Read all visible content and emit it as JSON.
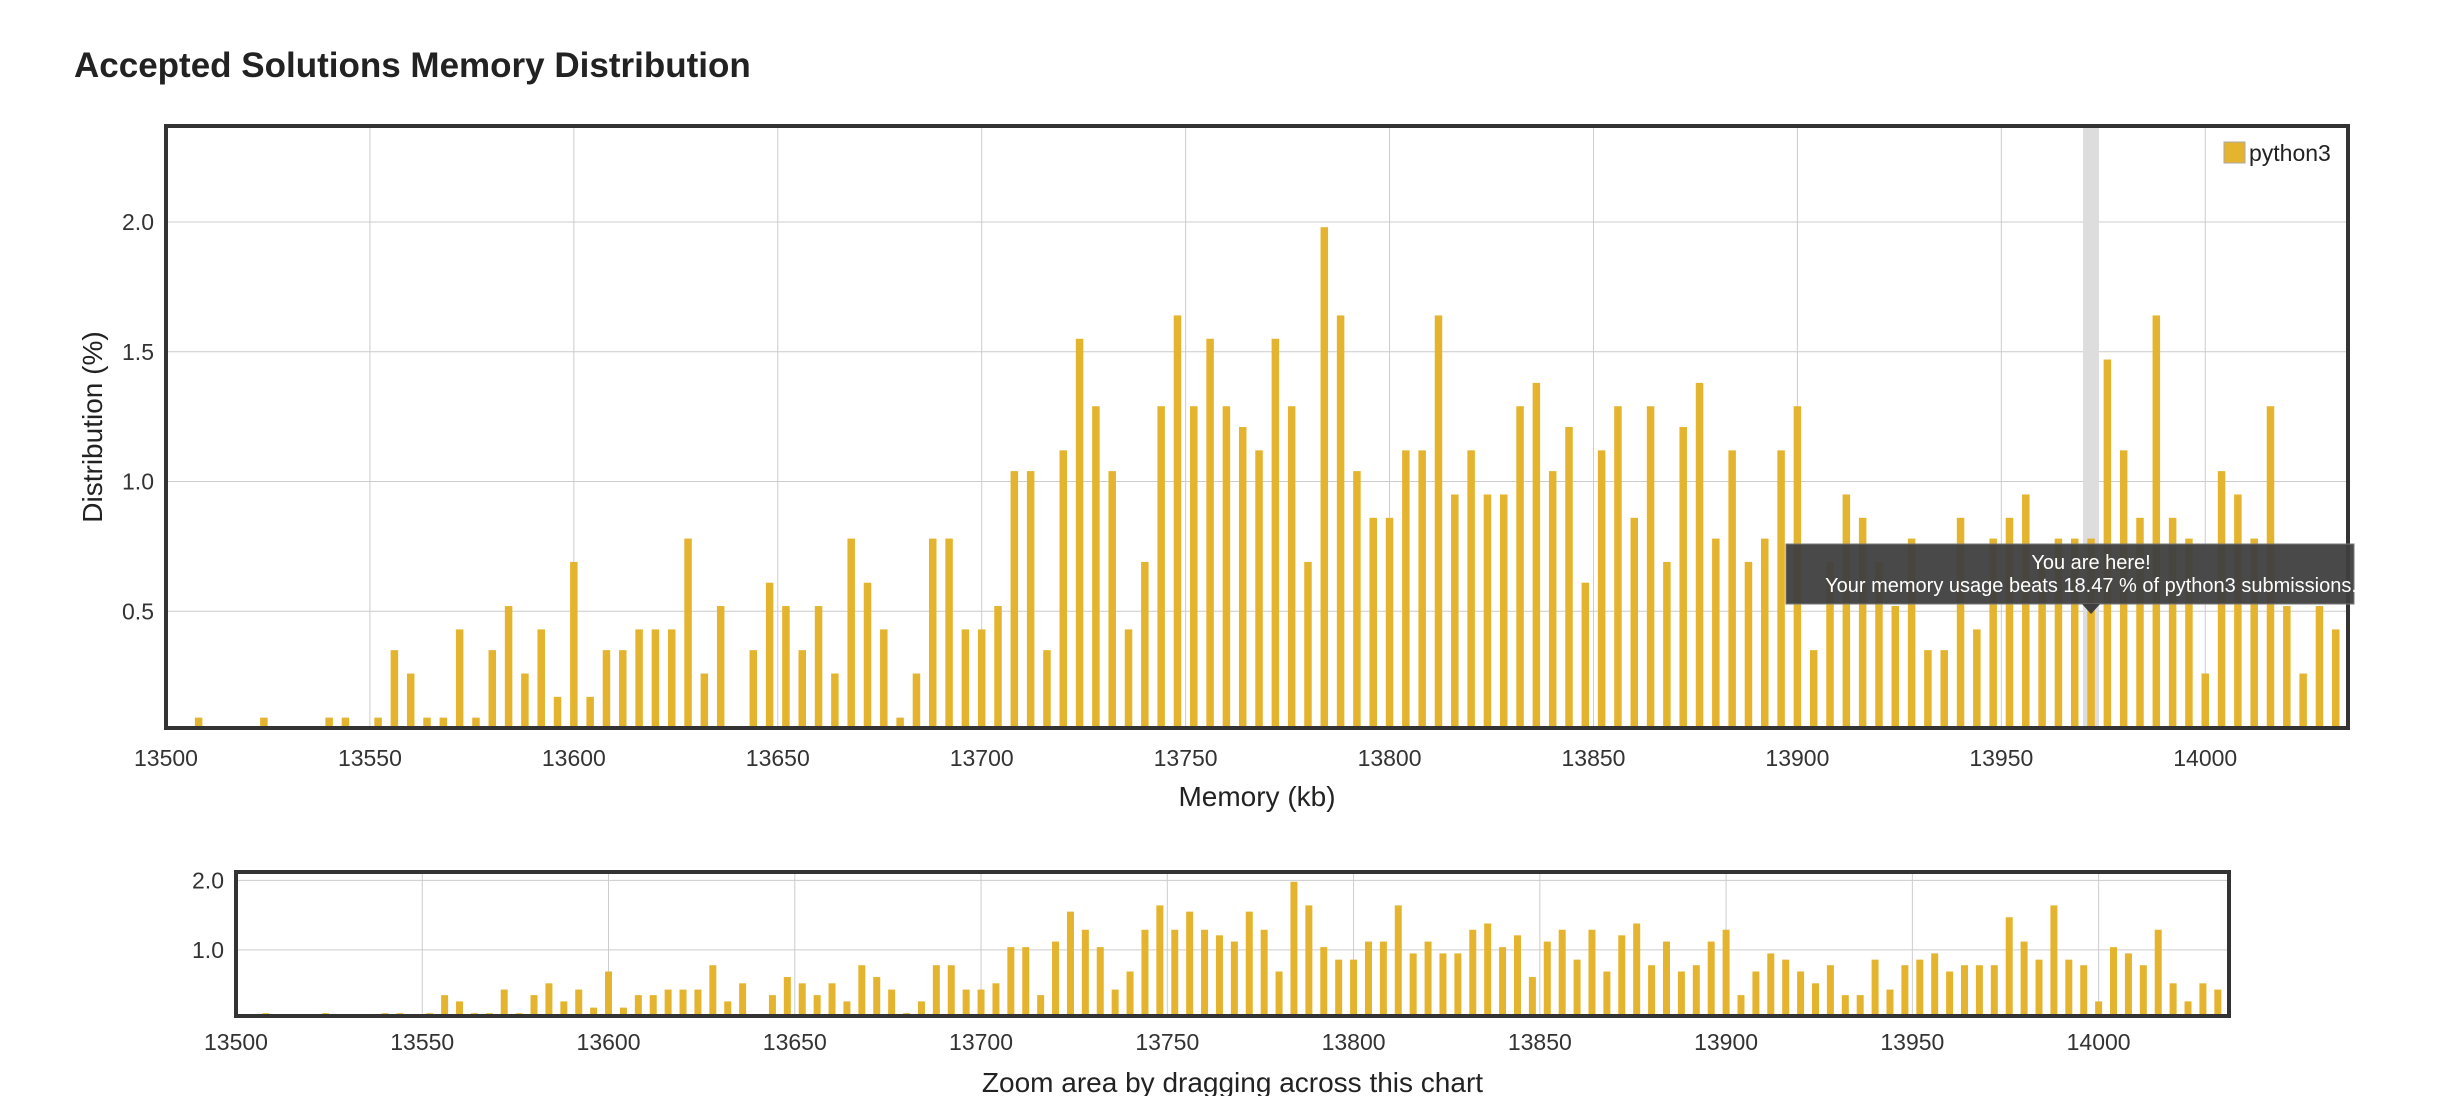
{
  "title": "Accepted Solutions Memory Distribution",
  "colors": {
    "bar": "#E5B42E",
    "grid": "#cccccc",
    "frame": "#333333",
    "highlight": "#dddddd",
    "tooltip_bg": "#3f3f3f",
    "tooltip_text": "#ffffff"
  },
  "chart_data": [
    {
      "type": "bar",
      "role": "main",
      "xlabel": "Memory (kb)",
      "ylabel": "Distribution (%)",
      "xlim": [
        13500,
        14035
      ],
      "ylim": [
        0.05,
        2.37
      ],
      "x_ticks": [
        13500,
        13550,
        13600,
        13650,
        13700,
        13750,
        13800,
        13850,
        13900,
        13950,
        14000
      ],
      "y_ticks": [
        0.5,
        1.0,
        1.5,
        2.0
      ],
      "x_tick_labels": [
        "13500",
        "13550",
        "13600",
        "13650",
        "13700",
        "13750",
        "13800",
        "13850",
        "13900",
        "13950",
        "14000"
      ],
      "y_tick_labels": [
        "0.5",
        "1.0",
        "1.5",
        "2.0"
      ],
      "grid": true,
      "legend": {
        "position": "top-right",
        "entries": [
          "python3"
        ]
      },
      "series": [
        {
          "name": "python3",
          "x": [
            13508,
            13524,
            13540,
            13544,
            13552,
            13556,
            13560,
            13564,
            13568,
            13572,
            13576,
            13580,
            13584,
            13588,
            13592,
            13596,
            13600,
            13604,
            13608,
            13612,
            13616,
            13620,
            13624,
            13628,
            13632,
            13636,
            13644,
            13648,
            13652,
            13656,
            13660,
            13664,
            13668,
            13672,
            13676,
            13680,
            13684,
            13688,
            13692,
            13696,
            13700,
            13704,
            13708,
            13712,
            13716,
            13720,
            13724,
            13728,
            13732,
            13736,
            13740,
            13744,
            13748,
            13752,
            13756,
            13760,
            13764,
            13768,
            13772,
            13776,
            13780,
            13784,
            13788,
            13792,
            13796,
            13800,
            13804,
            13808,
            13812,
            13816,
            13820,
            13824,
            13828,
            13832,
            13836,
            13840,
            13844,
            13848,
            13852,
            13856,
            13860,
            13864,
            13868,
            13872,
            13876,
            13880,
            13884,
            13888,
            13892,
            13896,
            13900,
            13904,
            13908,
            13912,
            13916,
            13920,
            13924,
            13928,
            13932,
            13936,
            13940,
            13944,
            13948,
            13952,
            13956,
            13960,
            13964,
            13968,
            13972,
            13976,
            13980,
            13984,
            13988,
            13992,
            13996,
            14000,
            14004,
            14008,
            14012,
            14016,
            14020,
            14024,
            14028,
            14032
          ],
          "values": [
            0.09,
            0.09,
            0.09,
            0.09,
            0.09,
            0.35,
            0.26,
            0.09,
            0.09,
            0.43,
            0.09,
            0.35,
            0.52,
            0.26,
            0.43,
            0.17,
            0.69,
            0.17,
            0.35,
            0.35,
            0.43,
            0.43,
            0.43,
            0.78,
            0.26,
            0.52,
            0.35,
            0.61,
            0.52,
            0.35,
            0.52,
            0.26,
            0.78,
            0.61,
            0.43,
            0.09,
            0.26,
            0.78,
            0.78,
            0.43,
            0.43,
            0.52,
            1.04,
            1.04,
            0.35,
            1.12,
            1.55,
            1.29,
            1.04,
            0.43,
            0.69,
            1.29,
            1.64,
            1.29,
            1.55,
            1.29,
            1.21,
            1.12,
            1.55,
            1.29,
            0.69,
            1.98,
            1.64,
            1.04,
            0.86,
            0.86,
            1.12,
            1.12,
            1.64,
            0.95,
            1.12,
            0.95,
            0.95,
            1.29,
            1.38,
            1.04,
            1.21,
            0.61,
            1.12,
            1.29,
            0.86,
            1.29,
            0.69,
            1.21,
            1.38,
            0.78,
            1.12,
            0.69,
            0.78,
            1.12,
            1.29,
            0.35,
            0.69,
            0.95,
            0.86,
            0.69,
            0.52,
            0.78,
            0.35,
            0.35,
            0.86,
            0.43,
            0.78,
            0.86,
            0.95,
            0.69,
            0.78,
            0.78,
            0.78,
            1.47,
            1.12,
            0.86,
            1.64,
            0.86,
            0.78,
            0.26,
            1.04,
            0.95,
            0.78,
            1.29,
            0.52,
            0.26,
            0.52,
            0.43
          ]
        }
      ],
      "highlight_x": 13972,
      "tooltip": {
        "line1": "You are here!",
        "line2": "Your memory usage beats 18.47 % of python3 submissions."
      }
    },
    {
      "type": "bar",
      "role": "navigator",
      "xlabel": "Zoom area by dragging across this chart",
      "ylabel": "",
      "xlim": [
        13500,
        14035
      ],
      "ylim": [
        0.05,
        2.12
      ],
      "x_ticks": [
        13500,
        13550,
        13600,
        13650,
        13700,
        13750,
        13800,
        13850,
        13900,
        13950,
        14000
      ],
      "y_ticks": [
        1.0,
        2.0
      ],
      "x_tick_labels": [
        "13500",
        "13550",
        "13600",
        "13650",
        "13700",
        "13750",
        "13800",
        "13850",
        "13900",
        "13950",
        "14000"
      ],
      "y_tick_labels": [
        "1.0",
        "2.0"
      ],
      "grid": true
    }
  ]
}
